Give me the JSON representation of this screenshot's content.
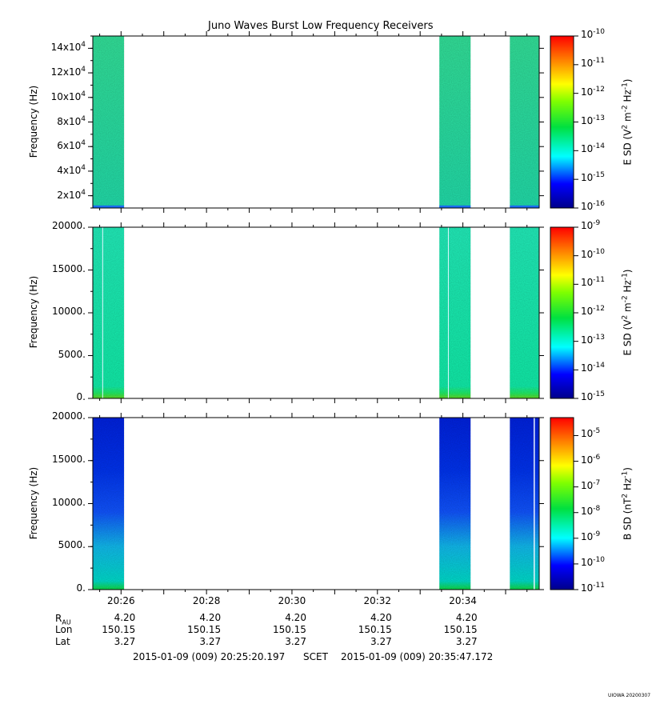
{
  "title": "Juno Waves Burst Low Frequency Receivers",
  "chart_data": [
    {
      "type": "heatmap",
      "panel": "E-field high band",
      "ylabel": "Frequency (Hz)",
      "ylim": [
        10000,
        150000
      ],
      "yticks": [
        20000,
        40000,
        60000,
        80000,
        100000,
        120000,
        140000
      ],
      "ytick_labels": [
        {
          "mant": "2x10",
          "exp": "4"
        },
        {
          "mant": "4x10",
          "exp": "4"
        },
        {
          "mant": "6x10",
          "exp": "4"
        },
        {
          "mant": "8x10",
          "exp": "4"
        },
        {
          "mant": "10x10",
          "exp": "4"
        },
        {
          "mant": "12x10",
          "exp": "4"
        },
        {
          "mant": "14x10",
          "exp": "4"
        }
      ],
      "colorbar": {
        "label": "E SD (V^2 m^-2 Hz^-1)",
        "log_min": -16,
        "log_max": -10,
        "tick_exps": [
          "-16",
          "-15",
          "-14",
          "-13",
          "-12",
          "-11",
          "-10"
        ]
      },
      "dominant_level": -13.5
    },
    {
      "type": "heatmap",
      "panel": "E-field low band",
      "ylabel": "Frequency (Hz)",
      "ylim": [
        0,
        20000
      ],
      "yticks": [
        0,
        5000,
        10000,
        15000,
        20000
      ],
      "ytick_labels": [
        "0.",
        "5000.",
        "10000.",
        "15000.",
        "20000."
      ],
      "colorbar": {
        "label": "E SD (V^2 m^-2 Hz^-1)",
        "log_min": -15,
        "log_max": -9,
        "tick_exps": [
          "-15",
          "-14",
          "-13",
          "-12",
          "-11",
          "-10",
          "-9"
        ]
      },
      "dominant_level": -12.8
    },
    {
      "type": "heatmap",
      "panel": "B-field",
      "ylabel": "Frequency (Hz)",
      "ylim": [
        0,
        20000
      ],
      "yticks": [
        0,
        5000,
        10000,
        15000,
        20000
      ],
      "ytick_labels": [
        "0.",
        "5000.",
        "10000.",
        "15000.",
        "20000."
      ],
      "colorbar": {
        "label": "B SD (nT^2 Hz^-1)",
        "log_min": -11,
        "log_max": -4.3,
        "tick_exps": [
          "-11",
          "-10",
          "-9",
          "-8",
          "-7",
          "-6",
          "-5"
        ]
      },
      "dominant_level": -9.8
    }
  ],
  "time_axis": {
    "start_min": 25.339,
    "end_min": 35.786,
    "tick_minutes": [
      26,
      28,
      30,
      32,
      34
    ],
    "tick_labels": [
      "20:26",
      "20:28",
      "20:30",
      "20:32",
      "20:34"
    ],
    "data_intervals_min": [
      [
        25.339,
        26.07
      ],
      [
        33.45,
        34.18
      ],
      [
        35.1,
        35.786
      ]
    ]
  },
  "ephemeris": {
    "r_label": "R",
    "r_sub": "AU",
    "rows": [
      {
        "label": "",
        "values": [
          "4.20",
          "4.20",
          "4.20",
          "4.20",
          "4.20"
        ]
      },
      {
        "label": "Lon",
        "values": [
          "150.15",
          "150.15",
          "150.15",
          "150.15",
          "150.15"
        ]
      },
      {
        "label": "Lat",
        "values": [
          "3.27",
          "3.27",
          "3.27",
          "3.27",
          "3.27"
        ]
      }
    ]
  },
  "time_range": {
    "start": "2015-01-09 (009) 20:25:20.197",
    "frame": "SCET",
    "end": "2015-01-09 (009) 20:35:47.172"
  },
  "stamp": "UIOWA 20200307"
}
